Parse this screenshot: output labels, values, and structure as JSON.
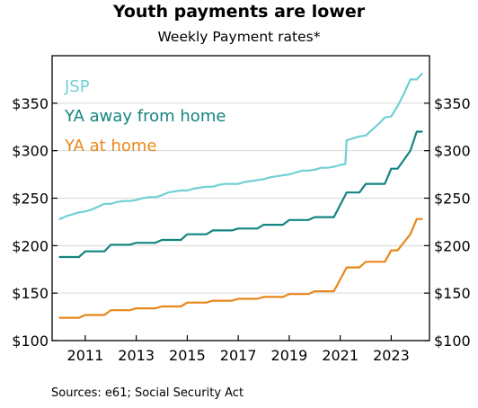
{
  "chart_data": {
    "type": "line",
    "title": "Youth payments are lower",
    "subtitle": "Weekly Payment rates*",
    "source": "Sources: e61; Social Security Act",
    "ylim": [
      100,
      400
    ],
    "yticks": [
      100,
      150,
      200,
      250,
      300,
      350
    ],
    "ytick_labels": [
      "$100",
      "$150",
      "$200",
      "$250",
      "$300",
      "$350"
    ],
    "xlim": [
      2009.7,
      2024.5
    ],
    "xticks": [
      2011,
      2013,
      2015,
      2017,
      2019,
      2021,
      2023
    ],
    "xtick_labels": [
      "2011",
      "2013",
      "2015",
      "2017",
      "2019",
      "2021",
      "2023"
    ],
    "grid": true,
    "legend_position": "top-left",
    "series": [
      {
        "name": "JSP",
        "color": "#6fd0d3",
        "x": [
          2010.0,
          2010.25,
          2010.5,
          2010.75,
          2011.0,
          2011.25,
          2011.5,
          2011.75,
          2012.0,
          2012.25,
          2012.5,
          2012.75,
          2013.0,
          2013.25,
          2013.5,
          2013.75,
          2014.0,
          2014.25,
          2014.5,
          2014.75,
          2015.0,
          2015.25,
          2015.5,
          2015.75,
          2016.0,
          2016.25,
          2016.5,
          2016.75,
          2017.0,
          2017.25,
          2017.5,
          2017.75,
          2018.0,
          2018.25,
          2018.5,
          2018.75,
          2019.0,
          2019.25,
          2019.5,
          2019.75,
          2020.0,
          2020.25,
          2020.5,
          2020.75,
          2021.0,
          2021.2,
          2021.25,
          2021.5,
          2021.75,
          2022.0,
          2022.25,
          2022.5,
          2022.75,
          2023.0,
          2023.25,
          2023.5,
          2023.75,
          2024.0,
          2024.2
        ],
        "y": [
          228,
          231,
          233,
          235,
          236,
          238,
          241,
          244,
          244,
          246,
          247,
          247,
          248,
          250,
          251,
          251,
          253,
          256,
          257,
          258,
          258,
          260,
          261,
          262,
          262,
          264,
          265,
          265,
          265,
          267,
          268,
          269,
          270,
          272,
          273,
          274,
          275,
          277,
          279,
          279,
          280,
          282,
          282,
          283,
          285,
          286,
          311,
          313,
          315,
          316,
          322,
          328,
          335,
          336,
          347,
          360,
          375,
          375,
          381
        ]
      },
      {
        "name": "YA away from home",
        "color": "#138580",
        "x": [
          2010.0,
          2010.75,
          2011.0,
          2011.75,
          2012.0,
          2012.75,
          2013.0,
          2013.75,
          2014.0,
          2014.75,
          2015.0,
          2015.75,
          2016.0,
          2016.75,
          2017.0,
          2017.75,
          2018.0,
          2018.75,
          2019.0,
          2019.75,
          2020.0,
          2020.75,
          2021.25,
          2021.75,
          2022.0,
          2022.5,
          2022.75,
          2023.0,
          2023.25,
          2023.75,
          2024.0,
          2024.2
        ],
        "y": [
          188,
          188,
          194,
          194,
          201,
          201,
          203,
          203,
          206,
          206,
          212,
          212,
          216,
          216,
          218,
          218,
          222,
          222,
          227,
          227,
          230,
          230,
          256,
          256,
          265,
          265,
          265,
          281,
          281,
          300,
          320,
          320
        ]
      },
      {
        "name": "YA at home",
        "color": "#e8871b",
        "x": [
          2010.0,
          2010.75,
          2011.0,
          2011.75,
          2012.0,
          2012.75,
          2013.0,
          2013.75,
          2014.0,
          2014.75,
          2015.0,
          2015.75,
          2016.0,
          2016.75,
          2017.0,
          2017.75,
          2018.0,
          2018.75,
          2019.0,
          2019.75,
          2020.0,
          2020.75,
          2021.25,
          2021.75,
          2022.0,
          2022.5,
          2022.75,
          2023.0,
          2023.25,
          2023.75,
          2024.0,
          2024.2
        ],
        "y": [
          124,
          124,
          127,
          127,
          132,
          132,
          134,
          134,
          136,
          136,
          140,
          140,
          142,
          142,
          144,
          144,
          146,
          146,
          149,
          149,
          152,
          152,
          177,
          177,
          183,
          183,
          183,
          195,
          195,
          212,
          228,
          228
        ]
      }
    ]
  }
}
